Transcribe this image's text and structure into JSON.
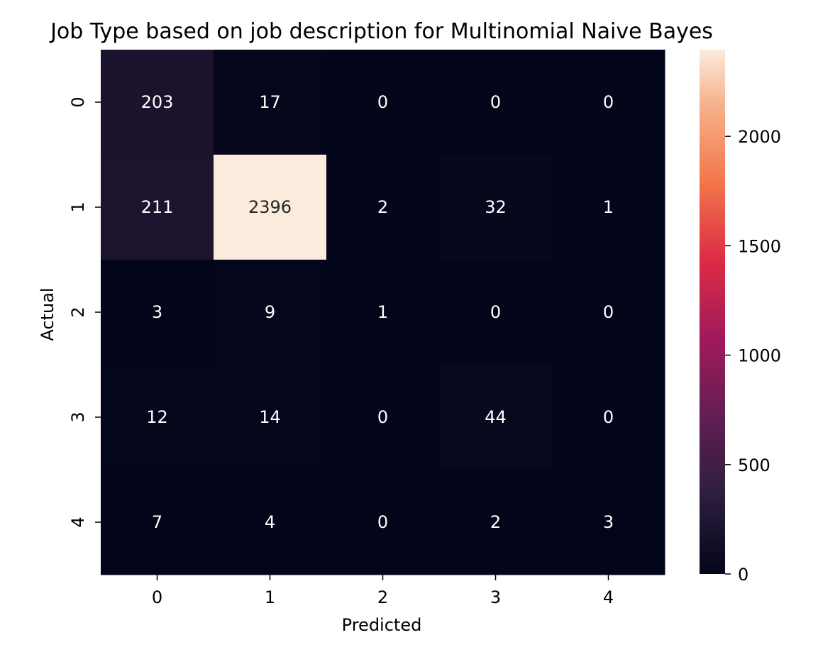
{
  "chart_data": {
    "type": "heatmap",
    "title": "Job Type based on job description for Multinomial Naive Bayes",
    "xlabel": "Predicted",
    "ylabel": "Actual",
    "x_categories": [
      "0",
      "1",
      "2",
      "3",
      "4"
    ],
    "y_categories": [
      "0",
      "1",
      "2",
      "3",
      "4"
    ],
    "values": [
      [
        203,
        17,
        0,
        0,
        0
      ],
      [
        211,
        2396,
        2,
        32,
        1
      ],
      [
        3,
        9,
        1,
        0,
        0
      ],
      [
        12,
        14,
        0,
        44,
        0
      ],
      [
        7,
        4,
        0,
        2,
        3
      ]
    ],
    "colorbar": {
      "min": 0,
      "max": 2396,
      "ticks": [
        0,
        500,
        1000,
        1500,
        2000
      ],
      "colormap": "rocket"
    }
  }
}
